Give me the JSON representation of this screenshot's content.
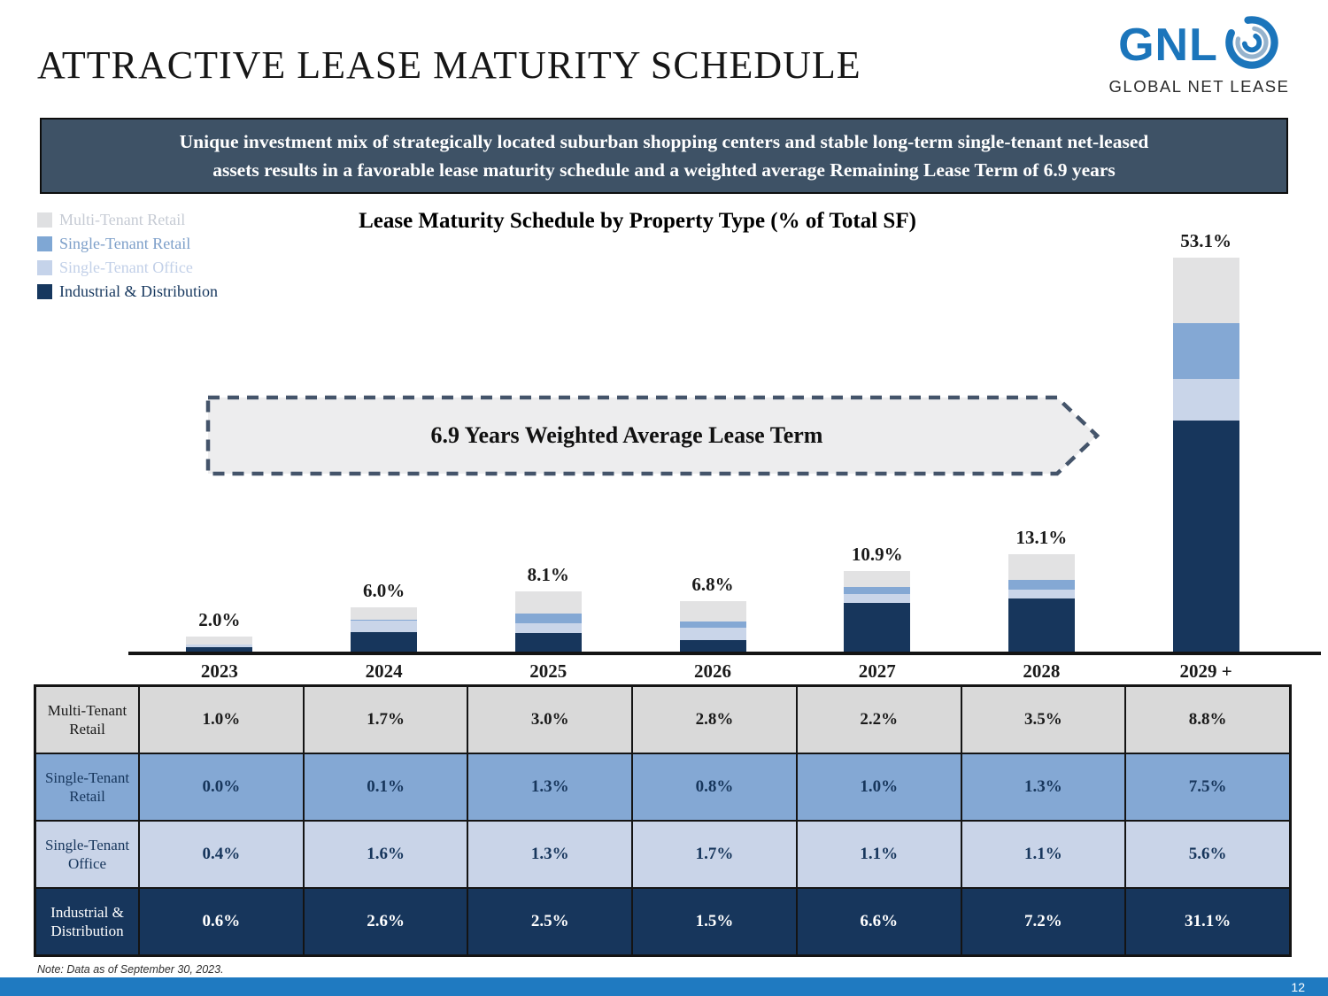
{
  "header": {
    "title": "ATTRACTIVE LEASE MATURITY SCHEDULE",
    "logo": {
      "acronym": "GNL",
      "name": "GLOBAL NET LEASE",
      "brand_blue": "#1b75bb"
    }
  },
  "banner": {
    "line1": "Unique investment mix of strategically located suburban shopping centers and stable long-term single-tenant net-leased",
    "line2": "assets results in a favorable lease maturity schedule and a weighted average Remaining Lease Term of 6.9 years",
    "background": "#3e5266"
  },
  "callout": {
    "label": "6.9 Years Weighted Average Lease Term",
    "dash_color": "#44546a",
    "fill": "#ededee"
  },
  "legend": {
    "items": [
      {
        "label": "Multi-Tenant Retail",
        "color": "#dfe0e2",
        "text_color": "#c6cbd4"
      },
      {
        "label": "Single-Tenant Retail",
        "color": "#7fa7d4",
        "text_color": "#7d9fc9"
      },
      {
        "label": "Single-Tenant Office",
        "color": "#c5d3ea",
        "text_color": "#c2d0e8"
      },
      {
        "label": "Industrial & Distribution",
        "color": "#16375e",
        "text_color": "#16375e"
      }
    ]
  },
  "chart_data": {
    "type": "bar",
    "stacked": true,
    "title": "Lease Maturity Schedule by Property Type (% of Total SF)",
    "categories": [
      "2023",
      "2024",
      "2025",
      "2026",
      "2027",
      "2028",
      "2029 +"
    ],
    "series": [
      {
        "name": "Industrial & Distribution",
        "color": "#17365c",
        "values": [
          0.6,
          2.6,
          2.5,
          1.5,
          6.6,
          7.2,
          31.1
        ]
      },
      {
        "name": "Single-Tenant Office",
        "color": "#c9d5e9",
        "values": [
          0.4,
          1.6,
          1.3,
          1.7,
          1.1,
          1.1,
          5.6
        ]
      },
      {
        "name": "Single-Tenant Retail",
        "color": "#84a8d4",
        "values": [
          0.0,
          0.1,
          1.3,
          0.8,
          1.0,
          1.3,
          7.5
        ]
      },
      {
        "name": "Multi-Tenant Retail",
        "color": "#e2e2e3",
        "values": [
          1.0,
          1.7,
          3.0,
          2.8,
          2.2,
          3.5,
          8.8
        ]
      }
    ],
    "totals": [
      "2.0%",
      "6.0%",
      "8.1%",
      "6.8%",
      "10.9%",
      "13.1%",
      "53.1%"
    ],
    "xlabel": "",
    "ylabel": "% of Total SF",
    "ylim": [
      0,
      55
    ],
    "grid": false,
    "legend_position": "top-left"
  },
  "table": {
    "rows": [
      {
        "label": "Multi-Tenant Retail",
        "bg": "#d9d9d9",
        "fg": "#1a1a1a",
        "values": [
          "1.0%",
          "1.7%",
          "3.0%",
          "2.8%",
          "2.2%",
          "3.5%",
          "8.8%"
        ]
      },
      {
        "label": "Single-Tenant Retail",
        "bg": "#84a8d4",
        "fg": "#17365c",
        "values": [
          "0.0%",
          "0.1%",
          "1.3%",
          "0.8%",
          "1.0%",
          "1.3%",
          "7.5%"
        ]
      },
      {
        "label": "Single-Tenant Office",
        "bg": "#c9d4e8",
        "fg": "#17365c",
        "values": [
          "0.4%",
          "1.6%",
          "1.3%",
          "1.7%",
          "1.1%",
          "1.1%",
          "5.6%"
        ]
      },
      {
        "label": "Industrial & Distribution",
        "bg": "#17365c",
        "fg": "#ffffff",
        "values": [
          "0.6%",
          "2.6%",
          "2.5%",
          "1.5%",
          "6.6%",
          "7.2%",
          "31.1%"
        ]
      }
    ]
  },
  "note": "Note: Data as of September 30, 2023.",
  "footer": {
    "page_number": "12",
    "bar_color": "#1f7ac1"
  }
}
